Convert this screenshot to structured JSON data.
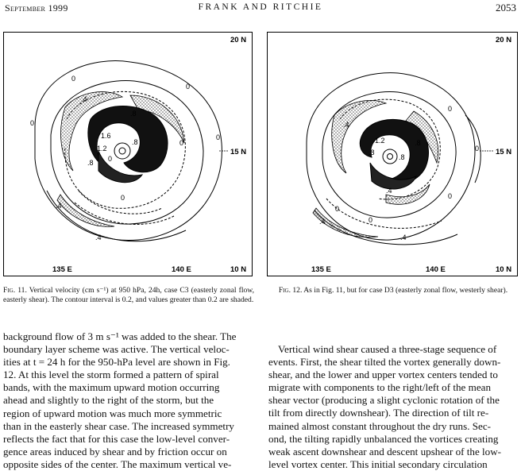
{
  "header": {
    "left": "September 1999",
    "center": "FRANK AND RITCHIE",
    "right": "2053"
  },
  "figure11": {
    "lat_top": "20 N",
    "lat_mid": "15 N",
    "lat_bottom": "10 N",
    "lon_left": "135 E",
    "lon_right": "140 E",
    "contour_labels": [
      "0",
      "0",
      "0",
      "0",
      "0",
      "0",
      "0",
      ".4",
      ".4",
      ".4",
      ".8",
      ".8",
      ".8",
      "1.2",
      "1.6"
    ],
    "caption_label": "Fig. 11.",
    "caption_text": " Vertical velocity (cm s⁻¹) at 950 hPa, 24h, case C3 (easterly zonal flow, easterly shear). The contour interval is 0.2, and values greater than 0.2 are shaded."
  },
  "figure12": {
    "lat_top": "20 N",
    "lat_mid": "15 N",
    "lat_bottom": "10 N",
    "lon_left": "135 E",
    "lon_right": "140 E",
    "contour_labels": [
      "0",
      "0",
      "0",
      "0",
      "0",
      ".4",
      ".4",
      ".4",
      ".4",
      ".8",
      ".8",
      ".8",
      "1.2"
    ],
    "caption_label": "Fig. 12.",
    "caption_text": " As in Fig. 11, but for case D3 (easterly zonal flow, westerly shear)."
  },
  "left_column_lines": [
    "background flow of 3 m s⁻¹ was added to the shear. The",
    "boundary layer scheme was active. The vertical veloc-",
    "ities at t = 24 h for the 950-hPa level are shown in Fig.",
    "12. At this level the storm formed a pattern of spiral",
    "bands, with the maximum upward motion occurring",
    "ahead and slightly to the right of the storm, but the",
    "region of upward motion was much more symmetric",
    "than in the easterly shear case. The increased symmetry",
    "reflects the fact that for this case the low-level conver-",
    "gence areas induced by shear and by friction occur on",
    "opposite sides of the center. The maximum vertical ve-"
  ],
  "right_column_lines": [
    "Vertical wind shear caused a three-stage sequence of",
    "events. First, the shear tilted the vortex generally down-",
    "shear, and the lower and upper vortex centers tended to",
    "migrate with components to the right/left of the mean",
    "shear vector (producing a slight cyclonic rotation of the",
    "tilt from directly downshear). The direction of tilt re-",
    "mained almost constant throughout the dry runs. Sec-",
    "ond, the tilting rapidly unbalanced the vortices creating",
    "weak ascent downshear and descent upshear of the low-",
    "level vortex center. This initial secondary circulation"
  ]
}
